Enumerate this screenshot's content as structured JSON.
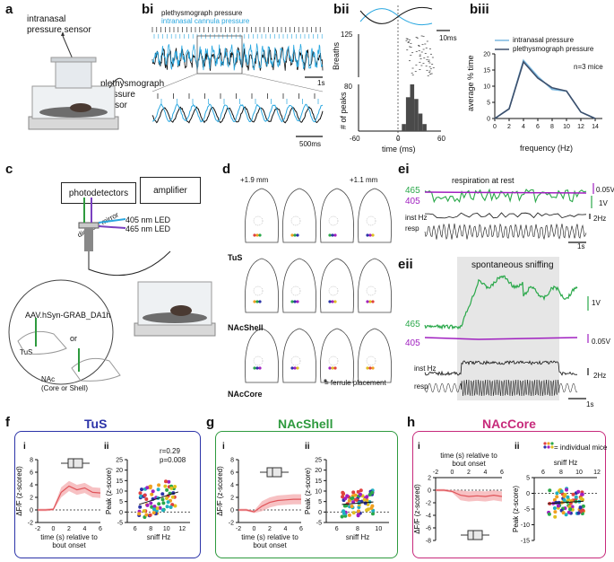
{
  "panels": {
    "a": "a",
    "bi": "bi",
    "bii": "bii",
    "biii": "biii",
    "c": "c",
    "d": "d",
    "ei": "ei",
    "eii": "eii",
    "f": "f",
    "g": "g",
    "h": "h",
    "fi": "i",
    "fii": "ii",
    "gi": "i",
    "gii": "ii",
    "hi": "i",
    "hii": "ii"
  },
  "a": {
    "intranasal": "intranasal\npressure sensor",
    "pleth": "plethysmograph\npressure\nsensor"
  },
  "bi": {
    "legend1": "plethysmograph pressure",
    "legend2": "intranasal cannula pressure",
    "scale1": "1s",
    "scale2": "500ms"
  },
  "bii": {
    "scale": "10ms",
    "breaths": "Breaths",
    "breaths_tick": "125",
    "peaks_label": "# of peaks",
    "peaks_tick": "80",
    "xlabel": "time (ms)",
    "xticks": [
      "-60",
      "0",
      "60"
    ]
  },
  "biii": {
    "legend": [
      "intranasal pressure",
      "plethysmograph pressure"
    ],
    "note": "n=3 mice",
    "xlabel": "frequency (Hz)",
    "ylabel": "average % time",
    "colors": {
      "intranasal": "#7ab8e0",
      "pleth": "#3d4f6b"
    }
  },
  "chart_data": [
    {
      "type": "line",
      "title": "biii",
      "xlabel": "frequency (Hz)",
      "ylabel": "average % time",
      "x": [
        0,
        2,
        4,
        6,
        8,
        10,
        12,
        14
      ],
      "xlim": [
        0,
        15
      ],
      "ylim": [
        0,
        20
      ],
      "xticks": [
        "0",
        "2",
        "4",
        "6",
        "8",
        "10",
        "12",
        "14"
      ],
      "yticks": [
        "0",
        "5",
        "10",
        "15",
        "20"
      ],
      "series": [
        {
          "name": "intranasal pressure",
          "values": [
            0,
            3,
            18,
            13,
            9,
            8.5,
            2,
            0
          ]
        },
        {
          "name": "plethysmograph pressure",
          "values": [
            0,
            3,
            17.5,
            12.5,
            9.5,
            8.5,
            2,
            0
          ]
        }
      ]
    },
    {
      "type": "bar",
      "title": "bii histogram",
      "xlabel": "time (ms)",
      "ylabel": "# of peaks",
      "x": [
        6,
        12,
        18,
        24,
        30,
        36
      ],
      "values": [
        12,
        58,
        80,
        55,
        30,
        12
      ],
      "xlim": [
        -60,
        60
      ],
      "ylim": [
        0,
        80
      ]
    },
    {
      "type": "line",
      "title": "TuS",
      "xlabel": "time (s) relative to bout onset",
      "ylabel": "ΔF/F (z-scored)",
      "x": [
        -2,
        -1,
        0,
        1,
        2,
        3,
        4,
        5,
        6
      ],
      "values": [
        0,
        0,
        0.1,
        2.8,
        3.8,
        3.2,
        3.5,
        2.8,
        2.7
      ],
      "xlim": [
        -2,
        6
      ],
      "ylim": [
        -2,
        8
      ],
      "xticks": [
        "-2",
        "0",
        "2",
        "4",
        "6"
      ],
      "yticks": [
        "-2",
        "0",
        "2",
        "4",
        "6",
        "8"
      ]
    },
    {
      "type": "scatter",
      "title": "TuS peak vs sniff",
      "xlabel": "sniff Hz",
      "ylabel": "Peak (z-score)",
      "xlim": [
        5,
        13
      ],
      "ylim": [
        -5,
        25
      ],
      "xticks": [
        "6",
        "8",
        "10",
        "12"
      ],
      "yticks": [
        "-5",
        "0",
        "5",
        "10",
        "15",
        "20",
        "25"
      ],
      "annotations": [
        "r=0.29",
        "p=0.008"
      ]
    },
    {
      "type": "line",
      "title": "NAcShell",
      "xlabel": "time (s) relative to bout onset",
      "ylabel": "ΔF/F (z-scored)",
      "x": [
        -2,
        -1,
        0,
        1,
        2,
        3,
        4,
        5,
        6
      ],
      "values": [
        0,
        0,
        -0.3,
        0.6,
        1.2,
        1.5,
        1.6,
        1.7,
        1.7
      ],
      "xlim": [
        -2,
        6
      ],
      "ylim": [
        -2,
        8
      ],
      "xticks": [
        "-2",
        "0",
        "2",
        "4",
        "6"
      ],
      "yticks": [
        "-2",
        "0",
        "2",
        "4",
        "6",
        "8"
      ]
    },
    {
      "type": "scatter",
      "title": "NAcShell peak vs sniff",
      "xlabel": "sniff Hz",
      "ylabel": "Peak (z-score)",
      "xlim": [
        5,
        11
      ],
      "ylim": [
        -5,
        25
      ],
      "xticks": [
        "6",
        "8",
        "10"
      ],
      "yticks": [
        "-5",
        "0",
        "5",
        "10",
        "15",
        "20",
        "25"
      ]
    },
    {
      "type": "line",
      "title": "NAcCore",
      "xlabel": "time (s) relative to bout onset",
      "ylabel": "ΔF/F (z-scored)",
      "x": [
        -2,
        -1,
        0,
        1,
        2,
        3,
        4,
        5,
        6
      ],
      "values": [
        0,
        0,
        -0.2,
        -0.8,
        -1.0,
        -0.9,
        -1.0,
        -0.8,
        -1.0
      ],
      "xlim": [
        -2,
        6
      ],
      "ylim": [
        -8,
        2
      ],
      "xticks": [
        "-2",
        "0",
        "2",
        "4",
        "6"
      ],
      "yticks": [
        "-8",
        "-6",
        "-4",
        "-2",
        "0",
        "2"
      ]
    },
    {
      "type": "scatter",
      "title": "NAcCore peak vs sniff",
      "xlabel": "sniff Hz",
      "ylabel": "Peak (z-score)",
      "xlim": [
        5,
        12
      ],
      "ylim": [
        -15,
        5
      ],
      "xticks": [
        "6",
        "8",
        "10",
        "12"
      ],
      "yticks": [
        "-15",
        "-10",
        "-5",
        "0",
        "5"
      ]
    }
  ],
  "c": {
    "photodetectors": "photodetectors",
    "amplifier": "amplifier",
    "dichroic": "dichroic mirror",
    "led405": "405 nm LED",
    "led465": "465 nm LED",
    "virus": "AAV.hSyn-GRAB_DA1h",
    "tus": "TuS",
    "or": "or",
    "nac": "NAc\n(Core or Shell)"
  },
  "d": {
    "coord1": "+1.9 mm",
    "coord2": "+1.1 mm",
    "tus": "TuS",
    "shell": "NAcShell",
    "core": "NAcCore",
    "legend": "= ferrule placement"
  },
  "ei": {
    "title": "respiration at rest",
    "l465": "465",
    "l405": "405",
    "s1": "0.05V",
    "s2": "1V",
    "insthz": "inst Hz",
    "resp": "resp",
    "hz": "2Hz",
    "sec": "1s"
  },
  "eii": {
    "title": "spontaneous sniffing",
    "l465": "465",
    "l405": "405",
    "s1": "1V",
    "s2": "0.05V",
    "insthz": "inst Hz",
    "resp": "resp",
    "hz": "2Hz",
    "sec": "1s"
  },
  "f": {
    "title": "TuS",
    "color": "#2b33a8"
  },
  "g": {
    "title": "NAcShell",
    "color": "#2e9a3e"
  },
  "h": {
    "title": "NAcCore",
    "color": "#c72a7b",
    "legend": "= individual mice"
  },
  "colors": {
    "green465": "#2aa84a",
    "purple405": "#a020c0",
    "blue": "#29a7e0",
    "trace": "#e0555a"
  }
}
